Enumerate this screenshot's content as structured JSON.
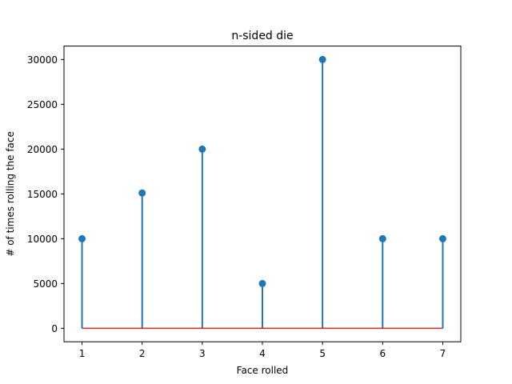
{
  "chart_data": {
    "type": "stem",
    "title": "n-sided die",
    "xlabel": "Face rolled",
    "ylabel": "# of times rolling the face",
    "x": [
      1,
      2,
      3,
      4,
      5,
      6,
      7
    ],
    "values": [
      10000,
      15100,
      20000,
      5000,
      30000,
      10000,
      10000
    ],
    "xlim": [
      0.7,
      7.3
    ],
    "ylim": [
      -1500,
      31500
    ],
    "xticks": [
      "1",
      "2",
      "3",
      "4",
      "5",
      "6",
      "7"
    ],
    "yticks": [
      "0",
      "5000",
      "10000",
      "15000",
      "20000",
      "25000",
      "30000"
    ],
    "grid": false,
    "colors": {
      "stem": "#1f77b4",
      "marker": "#1f77b4",
      "baseline": "#d62728"
    }
  }
}
